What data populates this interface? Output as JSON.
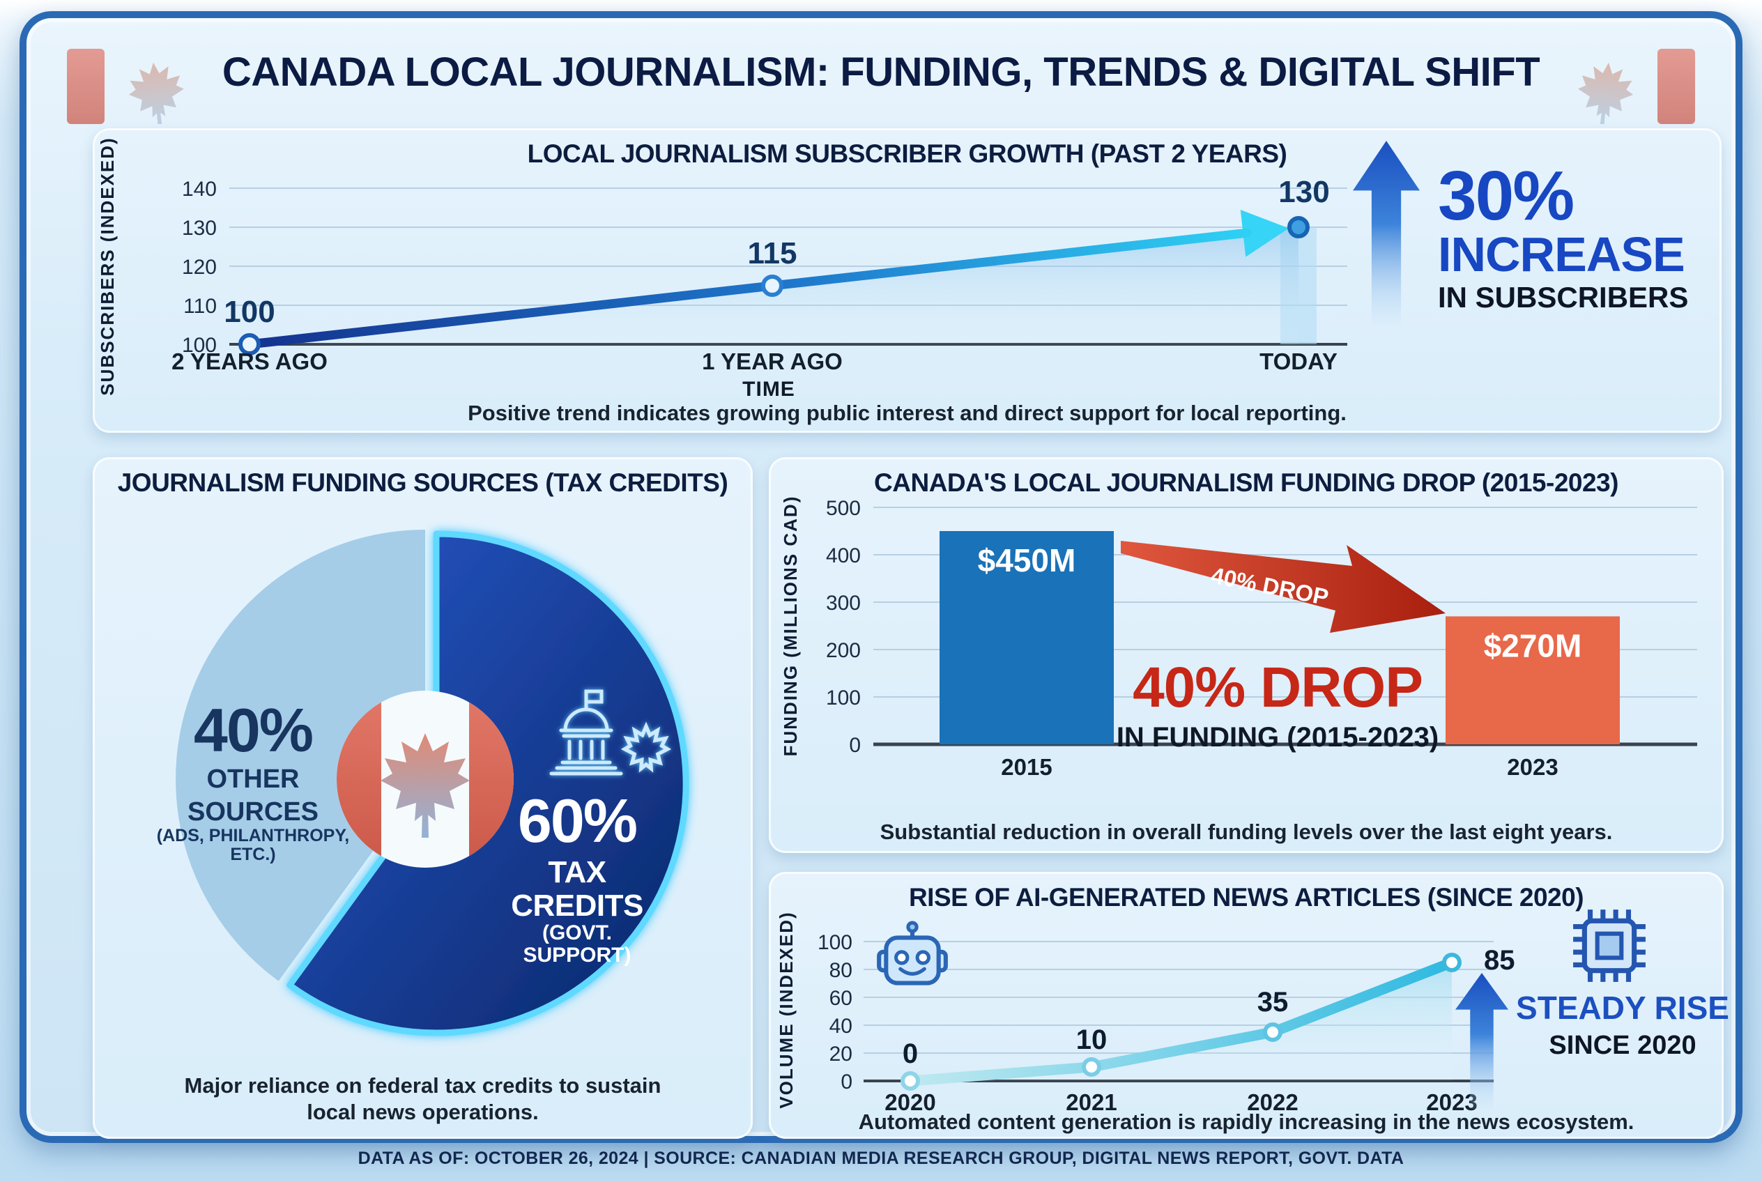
{
  "header": {
    "title": "CANADA LOCAL JOURNALISM: FUNDING, TRENDS & DIGITAL SHIFT"
  },
  "footer": {
    "text": "DATA AS OF: OCTOBER 26, 2024  |  SOURCE: CANADIAN MEDIA RESEARCH GROUP, DIGITAL NEWS REPORT, GOVT. DATA"
  },
  "colors": {
    "card_border": "#2a6ab5",
    "panel_bg": "#ddeffb",
    "title_navy": "#0b1b43",
    "growth_line_start": "#14338f",
    "growth_line_end": "#2fd0f4",
    "increase_blue": "#1747c2",
    "pie_dark_blue": "#0d2b7e",
    "pie_light_blue": "#a5cde8",
    "neon_cyan": "#5fd9ff",
    "bar_blue": "#1a72b8",
    "bar_orange": "#e8684a",
    "drop_red": "#c62717",
    "ai_line": "#3fbfe2",
    "steady_blue": "#1c50c0",
    "flag_red": "#d4695c"
  },
  "chart_data": [
    {
      "id": "subscriber_growth",
      "type": "line",
      "title": "LOCAL JOURNALISM SUBSCRIBER GROWTH (PAST 2 YEARS)",
      "xlabel": "TIME",
      "ylabel": "SUBSCRIBERS (INDEXED)",
      "categories": [
        "2 YEARS AGO",
        "1 YEAR AGO",
        "TODAY"
      ],
      "values": [
        100,
        115,
        130
      ],
      "yticks": [
        100,
        110,
        120,
        130,
        140
      ],
      "ylim": [
        100,
        140
      ],
      "legend": null,
      "grid": true,
      "annotation": {
        "big": "30%",
        "mid": "INCREASE",
        "small": "IN SUBSCRIBERS"
      },
      "caption": "Positive trend indicates growing public interest and direct support for local reporting."
    },
    {
      "id": "funding_sources",
      "type": "pie",
      "title": "JOURNALISM FUNDING SOURCES (TAX CREDITS)",
      "slices": [
        {
          "label": "TAX CREDITS",
          "sublabel": "(GOVT. SUPPORT)",
          "pct": "60%",
          "value": 60,
          "color": "#0d2b7e"
        },
        {
          "label": "OTHER SOURCES",
          "label_line1": "OTHER",
          "label_line2": "SOURCES",
          "sub_line1": "(ADS, PHILANTHROPY,",
          "sub_line2": "ETC.)",
          "pct": "40%",
          "value": 40,
          "color": "#a5cde8"
        }
      ],
      "caption": "Major reliance on federal tax credits to sustain local news operations."
    },
    {
      "id": "funding_drop",
      "type": "bar",
      "title": "CANADA'S LOCAL JOURNALISM FUNDING DROP (2015-2023)",
      "ylabel": "FUNDING (MILLIONS CAD)",
      "categories": [
        "2015",
        "2023"
      ],
      "values": [
        450,
        270
      ],
      "bar_labels": [
        "$450M",
        "$270M"
      ],
      "bar_colors": [
        "#1a72b8",
        "#e8684a"
      ],
      "yticks": [
        0,
        100,
        200,
        300,
        400,
        500
      ],
      "ylim": [
        0,
        500
      ],
      "grid": true,
      "arrow_label": "40% DROP",
      "annotation": {
        "big": "40% DROP",
        "small": "IN FUNDING (2015-2023)"
      },
      "caption": "Substantial reduction in overall funding levels over the last eight years."
    },
    {
      "id": "ai_articles",
      "type": "line",
      "title": "RISE OF AI-GENERATED NEWS ARTICLES (SINCE 2020)",
      "ylabel": "VOLUME (INDEXED)",
      "xlabel": null,
      "categories": [
        "2020",
        "2021",
        "2022",
        "2023"
      ],
      "values": [
        0,
        10,
        35,
        85
      ],
      "yticks": [
        0,
        20,
        40,
        60,
        80,
        100
      ],
      "ylim": [
        0,
        100
      ],
      "grid": true,
      "annotation": {
        "big": "STEADY RISE",
        "small": "SINCE 2020"
      },
      "caption": "Automated content generation is rapidly increasing in the news ecosystem."
    }
  ]
}
